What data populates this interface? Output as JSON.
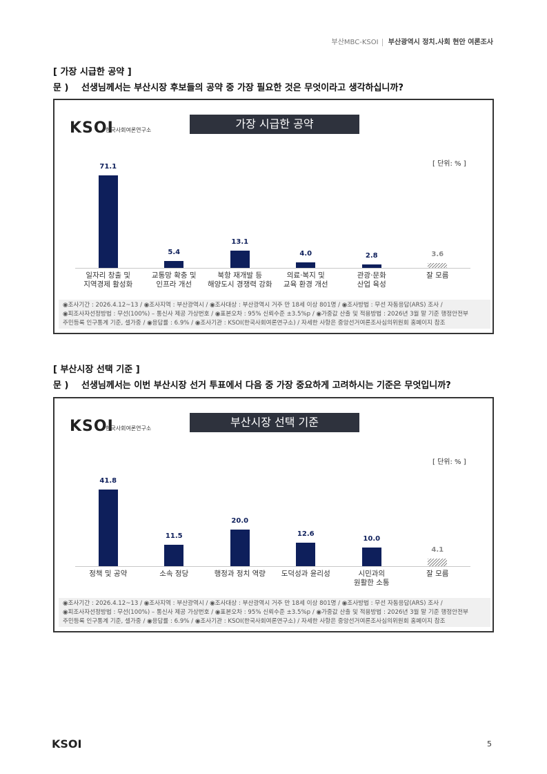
{
  "header": {
    "left": "부산MBC-KSOI",
    "right": "부산광역시 정치.사회 현안 여론조사"
  },
  "sections": [
    {
      "heading": "[ 가장 시급한 공약 ]",
      "question_label": "문 )",
      "question": "선생님께서는 부산시장 후보들의 공약 중 가장 필요한 것은 무엇이라고 생각하십니까?"
    },
    {
      "heading": "[ 부산시장 선택 기준 ]",
      "question_label": "문 )",
      "question": "선생님께서는 이번 부산시장 선거 투표에서 다음 중 가장 중요하게 고려하시는 기준은 무엇입니까?"
    }
  ],
  "chart_data": [
    {
      "type": "bar",
      "brand": "KSOI",
      "brand_text": "한국사회여론연구소",
      "title": "가장 시급한 공약",
      "unit_label": "[ 단위: % ]",
      "categories": [
        "일자리 창출 및\n지역경제 활성화",
        "교통망 확충 및\n인프라 개선",
        "북항 재개발 등\n해양도시 경쟁력 강화",
        "의료·복지 및\n교육 환경 개선",
        "관광·문화\n산업 육성",
        "잘 모름"
      ],
      "values": [
        71.1,
        5.4,
        13.1,
        4.0,
        2.8,
        3.6
      ],
      "value_labels": [
        "71.1",
        "5.4",
        "13.1",
        "4.0",
        "2.8",
        "3.6"
      ],
      "colors": [
        "#0e1f5b",
        "#0e1f5b",
        "#0e1f5b",
        "#0e1f5b",
        "#0e1f5b",
        "#8a8a8a"
      ],
      "patterns": [
        "solid",
        "solid",
        "solid",
        "solid",
        "solid",
        "hatched"
      ],
      "ylim": [
        0,
        85
      ],
      "notes": [
        "◉조사기간 : 2026.4.12~13 / ◉조사지역 : 부산광역시 / ◉조사대상 : 부산광역시 거주 만 18세 이상 801명 / ◉조사방법 : 무선 자동응답(ARS) 조사 /",
        "◉피조사자선정방법 : 무선(100%) – 통신사 제공 가상번호 / ◉표본오차 : 95% 신뢰수준 ±3.5%p / ◉가중값 산출 및 적용방법 : 2026년 3월 말 기준 행정안전부",
        "주민등록 인구통계 기준, 셀가중 / ◉응답률 : 6.9% / ◉조사기관 : KSOI(한국사회여론연구소) / 자세한 사항은 중앙선거여론조사심의위원회 홈페이지 참조"
      ]
    },
    {
      "type": "bar",
      "brand": "KSOI",
      "brand_text": "한국사회여론연구소",
      "title": "부산시장 선택 기준",
      "unit_label": "[ 단위: % ]",
      "categories": [
        "정책 및 공약",
        "소속 정당",
        "행정과 정치 역량",
        "도덕성과 윤리성",
        "시민과의\n원활한 소통",
        "잘 모름"
      ],
      "values": [
        41.8,
        11.5,
        20.0,
        12.6,
        10.0,
        4.1
      ],
      "value_labels": [
        "41.8",
        "11.5",
        "20.0",
        "12.6",
        "10.0",
        "4.1"
      ],
      "colors": [
        "#0e1f5b",
        "#0e1f5b",
        "#0e1f5b",
        "#0e1f5b",
        "#0e1f5b",
        "#8a8a8a"
      ],
      "patterns": [
        "solid",
        "solid",
        "solid",
        "solid",
        "solid",
        "hatched"
      ],
      "ylim": [
        0,
        60
      ],
      "notes": [
        "◉조사기간 : 2026.4.12~13 / ◉조사지역 : 부산광역시 / ◉조사대상 : 부산광역시 거주 만 18세 이상 801명 / ◉조사방법 : 무선 자동응답(ARS) 조사 /",
        "◉피조사자선정방법 : 무선(100%) – 통신사 제공 가상번호 / ◉표본오차 : 95% 신뢰수준 ±3.5%p / ◉가중값 산출 및 적용방법 : 2026년 3월 말 기준 행정안전부",
        "주민등록 인구통계 기준, 셀가중 / ◉응답률 : 6.9% / ◉조사기관 : KSOI(한국사회여론연구소) / 자세한 사항은 중앙선거여론조사심의위원회 홈페이지 참조"
      ]
    }
  ],
  "footer": {
    "brand": "KSOI",
    "page": "5"
  }
}
